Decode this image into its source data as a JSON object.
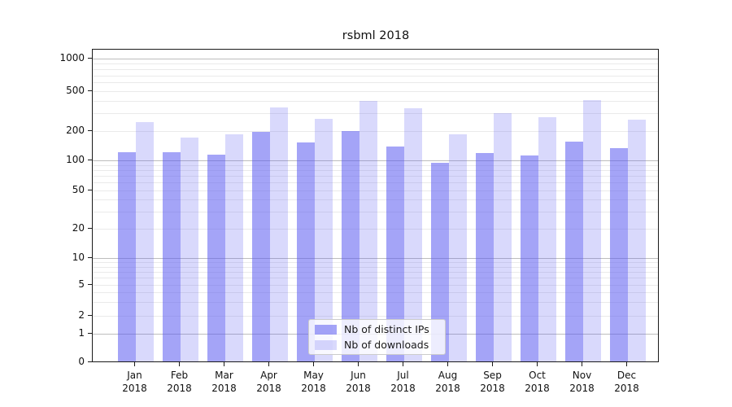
{
  "chart_data": {
    "type": "bar",
    "title": "rsbml 2018",
    "categories": [
      "Jan",
      "Feb",
      "Mar",
      "Apr",
      "May",
      "Jun",
      "Jul",
      "Aug",
      "Sep",
      "Oct",
      "Nov",
      "Dec"
    ],
    "year_label": "2018",
    "series": [
      {
        "name": "Nb of distinct IPs",
        "color": "rgba(90,90,240,0.55)",
        "values": [
          120,
          118,
          113,
          193,
          150,
          197,
          136,
          93,
          116,
          111,
          152,
          132
        ]
      },
      {
        "name": "Nb of downloads",
        "color": "rgba(90,90,240,0.23)",
        "values": [
          240,
          168,
          183,
          340,
          260,
          390,
          330,
          182,
          295,
          270,
          400,
          257
        ]
      }
    ],
    "yticks": [
      0,
      1,
      2,
      5,
      10,
      20,
      50,
      100,
      200,
      500,
      1000
    ],
    "ylim": [
      0,
      1000
    ],
    "yscale": "log (symlog, linear below 1)",
    "grid": {
      "on": true,
      "major_values": [
        1,
        10,
        100,
        1000
      ],
      "major_color": "#bdbdbd",
      "minor_color": "#eaeaea"
    },
    "legend": {
      "position": "lower-center"
    }
  }
}
